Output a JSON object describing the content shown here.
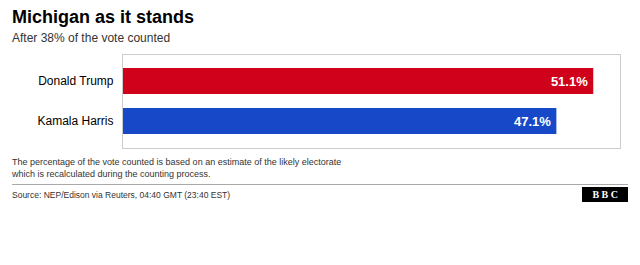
{
  "chart_data": {
    "type": "bar",
    "orientation": "horizontal",
    "title": "Michigan as it stands",
    "subtitle": "After 38% of the vote counted",
    "categories": [
      "Donald Trump",
      "Kamala Harris"
    ],
    "values": [
      51.1,
      47.1
    ],
    "value_labels": [
      "51.1%",
      "47.1%"
    ],
    "colors": [
      "#d0021b",
      "#1648c8"
    ],
    "xlim": [
      0,
      54
    ],
    "tick_labels": "y",
    "data_labels": true,
    "grid": false,
    "annotations": [
      "The percentage of the vote counted is based on an estimate of the likely electorate",
      "which is recalculated during the counting process.",
      "Source: NEP/Edison via Reuters, 04:40 GMT (23:40 EST)",
      "B B C"
    ]
  }
}
